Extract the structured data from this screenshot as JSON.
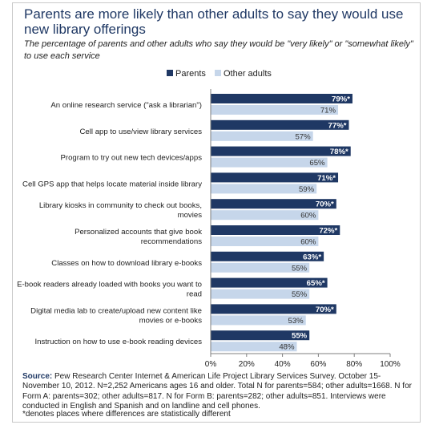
{
  "title": "Parents are more likely than other adults to say they would use new library offerings",
  "subtitle": "The percentage of parents and other adults who say they would be \"very likely\" or \"somewhat likely\" to use each service",
  "legend": {
    "parents": "Parents",
    "other": "Other adults"
  },
  "colors": {
    "parents": "#1f3864",
    "other": "#c6d6ea",
    "grid": "#d9d9d9",
    "axis": "#7f7f7f",
    "title": "#1f3864"
  },
  "footer": {
    "source_label": "Source:",
    "source_text": " Pew Research Center Internet & American Life Project Library Services Survey. October 15-November 10, 2012. N=2,252 Americans ages 16 and older. Total N for parents=584; other adults=1668. N for Form A: parents=302; other adults=817. N for Form B: parents=282; other adults=851. Interviews were conducted in English and Spanish and on landline and cell phones.",
    "footnote": "*denotes places where differences are statistically different"
  },
  "chart_data": {
    "type": "bar",
    "orientation": "horizontal",
    "categories": [
      [
        "An online research service (\"ask a librarian\")"
      ],
      [
        "Cell app to use/view library services"
      ],
      [
        "Program to try out new tech devices/apps"
      ],
      [
        "Cell GPS app that helps locate material inside library"
      ],
      [
        "Library kiosks in community to check out books,",
        "movies"
      ],
      [
        "Personalized accounts that give book",
        "recommendations"
      ],
      [
        "Classes on how to download library e-books"
      ],
      [
        "E-book readers already loaded with books you want to",
        "read"
      ],
      [
        "Digital media lab to create/upload new content like",
        "movies or e-books"
      ],
      [
        "Instruction on how to use e-book reading devices"
      ]
    ],
    "series": [
      {
        "name": "Parents",
        "values": [
          79,
          77,
          78,
          71,
          70,
          72,
          63,
          65,
          70,
          55
        ],
        "labels": [
          "79%*",
          "77%*",
          "78%*",
          "71%*",
          "70%*",
          "72%*",
          "63%*",
          "65%*",
          "70%*",
          "55%"
        ]
      },
      {
        "name": "Other adults",
        "values": [
          71,
          57,
          65,
          59,
          60,
          60,
          55,
          55,
          53,
          48
        ],
        "labels": [
          "71%",
          "57%",
          "65%",
          "59%",
          "60%",
          "60%",
          "55%",
          "55%",
          "53%",
          "48%"
        ]
      }
    ],
    "xlim": [
      0,
      100
    ],
    "xticks": [
      0,
      20,
      40,
      60,
      80,
      100
    ],
    "xtick_labels": [
      "0%",
      "20%",
      "40%",
      "60%",
      "80%",
      "100%"
    ],
    "grid": false,
    "legend_position": "top"
  }
}
